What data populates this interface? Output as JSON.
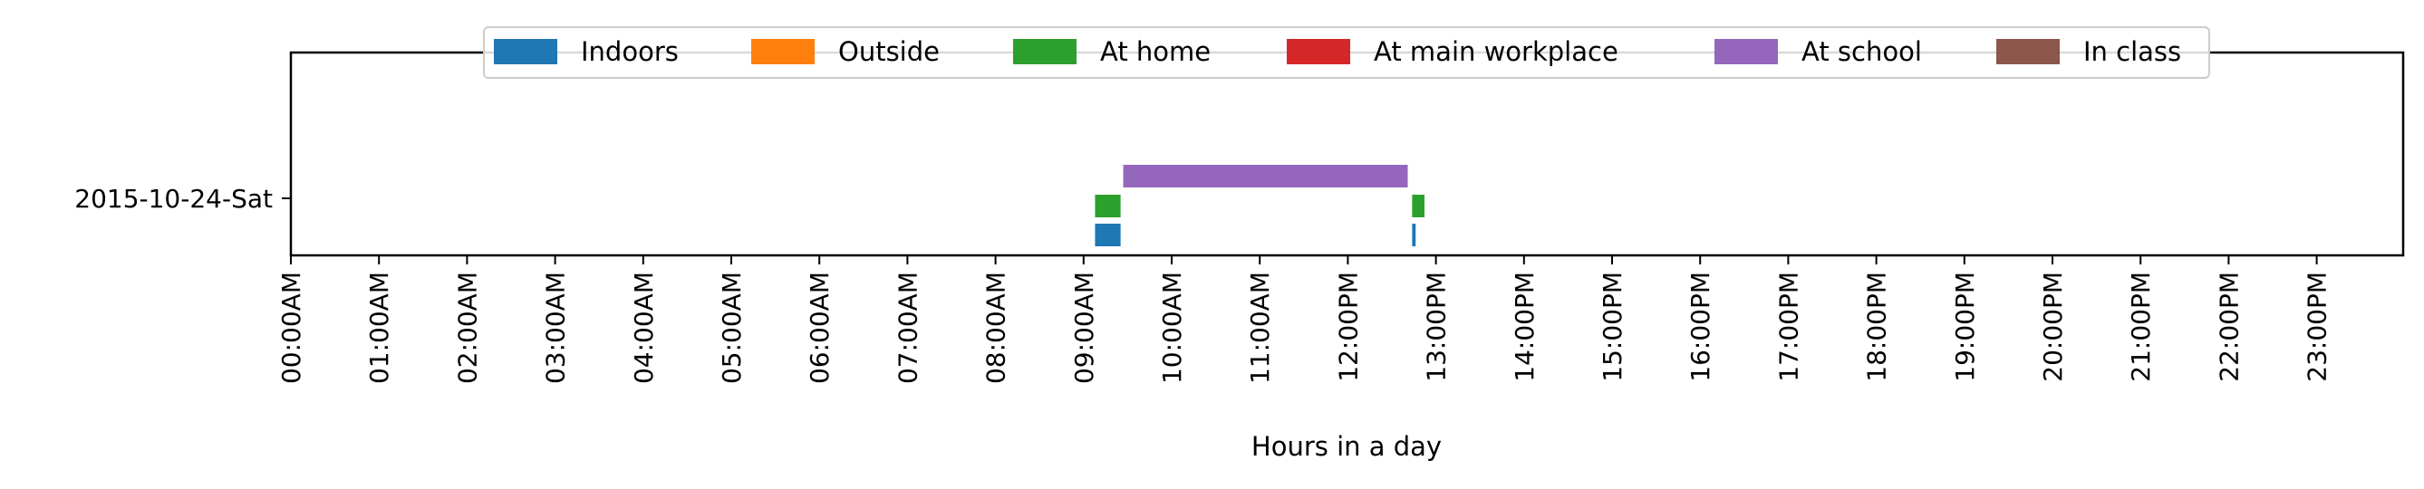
{
  "chart_data": {
    "type": "bar",
    "orientation": "horizontal-timeline",
    "xlabel": "Hours in a day",
    "ylabel": "",
    "xlim": [
      0,
      24
    ],
    "x_ticks": [
      "00:00AM",
      "01:00AM",
      "02:00AM",
      "03:00AM",
      "04:00AM",
      "05:00AM",
      "06:00AM",
      "07:00AM",
      "08:00AM",
      "09:00AM",
      "10:00AM",
      "11:00AM",
      "12:00PM",
      "13:00PM",
      "14:00PM",
      "15:00PM",
      "16:00PM",
      "17:00PM",
      "18:00PM",
      "19:00PM",
      "20:00PM",
      "21:00PM",
      "22:00PM",
      "23:00PM"
    ],
    "categories": [
      "2015-10-24-Sat"
    ],
    "legend_position": "top-center",
    "grid": false,
    "series": [
      {
        "name": "Indoors",
        "color": "#1f77b4",
        "intervals": [
          [
            9.13,
            9.42
          ],
          [
            12.73,
            12.77
          ]
        ]
      },
      {
        "name": "Outside",
        "color": "#ff7f0e",
        "intervals": []
      },
      {
        "name": "At home",
        "color": "#2ca02c",
        "intervals": [
          [
            9.13,
            9.42
          ],
          [
            12.73,
            12.87
          ]
        ]
      },
      {
        "name": "At main workplace",
        "color": "#d62728",
        "intervals": []
      },
      {
        "name": "At school",
        "color": "#9467bd",
        "intervals": [
          [
            9.45,
            12.68
          ]
        ]
      },
      {
        "name": "In class",
        "color": "#8c564b",
        "intervals": []
      }
    ]
  }
}
